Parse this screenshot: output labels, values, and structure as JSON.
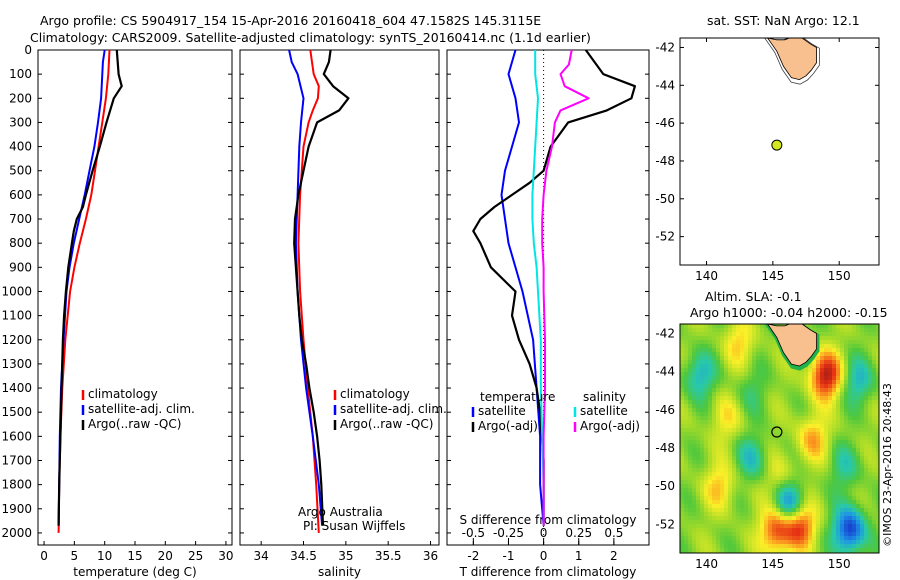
{
  "header": {
    "line1": "Argo profile: CS 5904917_154 15-Apr-2016 20160418_604 47.1582S 145.3115E",
    "line2": "Climatology: CARS2009. Satellite-adjusted climatology: synTS_20160414.nc (1.1d earlier)"
  },
  "side_labels": {
    "sst": "sat. SST: NaN Argo: 12.1",
    "altim": "Altim. SLA: -0.1",
    "argo_h": "Argo h1000: -0.04 h2000: -0.15",
    "stamp": "©IMOS 23-Apr-2016 20:48:43"
  },
  "colors": {
    "climatology": "#ff0000",
    "satellite": "#0000ff",
    "argo": "#000000",
    "sat_salinity": "#00e5e5",
    "argo_salinity": "#ff00ff",
    "land": "#f9c08f",
    "float_marker": "#d4e820"
  },
  "chart_data": [
    {
      "type": "line",
      "xlabel": "temperature (deg C)",
      "ylabel": "",
      "xlim": [
        -1,
        31
      ],
      "ylim": [
        2050,
        0
      ],
      "xticks": [
        "0",
        "5",
        "10",
        "15",
        "20",
        "25",
        "30"
      ],
      "yticks": [
        "0",
        "100",
        "200",
        "300",
        "400",
        "500",
        "600",
        "700",
        "800",
        "900",
        "1000",
        "1100",
        "1200",
        "1300",
        "1400",
        "1500",
        "1600",
        "1700",
        "1800",
        "1900",
        "2000"
      ],
      "legend": [
        "climatology",
        "satellite-adj. clim.",
        "Argo(..raw -QC)"
      ],
      "series": [
        {
          "name": "climatology",
          "color": "red",
          "depth": [
            0,
            100,
            200,
            300,
            400,
            500,
            600,
            700,
            800,
            900,
            1000,
            1200,
            1400,
            1600,
            1800,
            2000
          ],
          "values": [
            10.8,
            10.6,
            10.2,
            9.6,
            9.0,
            8.4,
            7.8,
            6.9,
            5.9,
            5.0,
            4.3,
            3.5,
            3.0,
            2.7,
            2.5,
            2.4
          ]
        },
        {
          "name": "satellite-adj. clim.",
          "color": "blue",
          "depth": [
            0,
            50,
            100,
            200,
            300,
            400,
            500,
            600,
            700,
            800,
            900,
            1000,
            1200,
            1400,
            1600,
            1800,
            1970
          ],
          "values": [
            10.0,
            9.7,
            9.6,
            9.4,
            8.9,
            8.3,
            7.5,
            6.7,
            5.8,
            4.9,
            4.2,
            3.7,
            3.2,
            2.8,
            2.6,
            2.5,
            2.4
          ]
        },
        {
          "name": "Argo(..raw -QC)",
          "color": "black",
          "depth": [
            0,
            100,
            150,
            200,
            300,
            400,
            500,
            600,
            650,
            700,
            750,
            800,
            900,
            1000,
            1100,
            1200,
            1400,
            1600,
            1800,
            1970
          ],
          "values": [
            12.0,
            12.3,
            12.8,
            11.5,
            10.3,
            9.2,
            8.0,
            6.9,
            6.4,
            5.4,
            4.9,
            4.6,
            4.0,
            3.6,
            3.3,
            3.1,
            2.9,
            2.7,
            2.5,
            2.4
          ]
        }
      ]
    },
    {
      "type": "line",
      "xlabel": "salinity",
      "ylabel": "",
      "xlim": [
        33.75,
        36.1
      ],
      "ylim": [
        2050,
        0
      ],
      "xticks": [
        "34",
        "34.5",
        "35",
        "35.5",
        "36"
      ],
      "legend": [
        "climatology",
        "satellite-adj. clim.",
        "Argo(..raw -QC)"
      ],
      "annotations": [
        "Argo Australia",
        "PI: Susan Wijffels"
      ],
      "series": [
        {
          "name": "climatology",
          "color": "red",
          "depth": [
            0,
            100,
            150,
            200,
            250,
            300,
            400,
            600,
            800,
            1000,
            1200,
            1400,
            1600,
            1800,
            2000
          ],
          "values": [
            34.58,
            34.62,
            34.68,
            34.67,
            34.61,
            34.56,
            34.5,
            34.46,
            34.44,
            34.46,
            34.5,
            34.55,
            34.61,
            34.65,
            34.68
          ]
        },
        {
          "name": "satellite-adj. clim.",
          "color": "blue",
          "depth": [
            0,
            50,
            100,
            200,
            300,
            400,
            600,
            800,
            1000,
            1200,
            1400,
            1600,
            1800,
            1970
          ],
          "values": [
            34.33,
            34.36,
            34.43,
            34.5,
            34.47,
            34.45,
            34.43,
            34.41,
            34.43,
            34.47,
            34.53,
            34.61,
            34.68,
            34.72
          ]
        },
        {
          "name": "Argo(..raw -QC)",
          "color": "black",
          "depth": [
            0,
            50,
            100,
            150,
            200,
            250,
            300,
            400,
            500,
            600,
            700,
            800,
            900,
            1000,
            1100,
            1200,
            1300,
            1400,
            1500,
            1600,
            1700,
            1800,
            1970
          ],
          "values": [
            34.82,
            34.8,
            34.74,
            34.85,
            35.03,
            34.92,
            34.66,
            34.56,
            34.5,
            34.44,
            34.4,
            34.39,
            34.41,
            34.43,
            34.45,
            34.48,
            34.53,
            34.57,
            34.62,
            34.66,
            34.69,
            34.71,
            34.73
          ]
        }
      ]
    },
    {
      "type": "line",
      "xlabel": "T difference from climatology",
      "xlabel2": "S difference from climatology",
      "xlim": [
        -2.75,
        3.0
      ],
      "xlim_top": [
        -0.6875,
        0.75
      ],
      "ylim": [
        2050,
        0
      ],
      "xticks": [
        "-2",
        "-1",
        "0",
        "1",
        "2"
      ],
      "xticks_top": [
        "-0.5",
        "-0.25",
        "0",
        "0.25",
        "0.5"
      ],
      "legend_titles": [
        "temperature",
        "salinity"
      ],
      "legend": [
        "satellite",
        "Argo(-adj)",
        "satellite",
        "Argo(-adj)"
      ],
      "series": [
        {
          "name": "satellite",
          "group": "temperature",
          "color": "blue",
          "depth": [
            0,
            100,
            200,
            300,
            400,
            500,
            600,
            700,
            800,
            1000,
            1200,
            1400,
            1600,
            1800,
            1970
          ],
          "values": [
            -0.8,
            -1.0,
            -0.8,
            -0.7,
            -0.9,
            -1.1,
            -1.2,
            -1.1,
            -1.0,
            -0.6,
            -0.3,
            -0.2,
            -0.1,
            -0.1,
            0.0
          ]
        },
        {
          "name": "Argo(-adj)",
          "group": "temperature",
          "color": "black",
          "depth": [
            0,
            100,
            150,
            200,
            250,
            300,
            400,
            500,
            550,
            600,
            650,
            700,
            750,
            800,
            900,
            1000,
            1100,
            1200,
            1300,
            1400,
            1500,
            1600,
            1700,
            1800,
            1970
          ],
          "values": [
            1.2,
            1.7,
            2.6,
            2.5,
            1.8,
            0.7,
            0.2,
            0.0,
            -0.4,
            -0.9,
            -1.4,
            -1.8,
            -2.0,
            -1.8,
            -1.5,
            -0.8,
            -0.9,
            -0.7,
            -0.4,
            -0.2,
            -0.1,
            -0.05,
            0.0,
            0.0,
            0.0
          ]
        },
        {
          "name": "satellite",
          "group": "salinity",
          "color": "cyan",
          "depth": [
            0,
            100,
            200,
            300,
            400,
            500,
            600,
            700,
            800,
            900,
            1000,
            1200,
            1400,
            1600,
            1800,
            1970
          ],
          "values": [
            -0.06,
            -0.06,
            -0.04,
            -0.05,
            -0.06,
            -0.07,
            -0.08,
            -0.08,
            -0.07,
            -0.05,
            -0.04,
            -0.02,
            -0.02,
            -0.01,
            0.0,
            0.0
          ]
        },
        {
          "name": "Argo(-adj)",
          "group": "salinity",
          "color": "magenta",
          "depth": [
            0,
            60,
            100,
            150,
            200,
            250,
            300,
            400,
            500,
            600,
            700,
            800,
            900,
            1000,
            1200,
            1400,
            1600,
            1800,
            1970
          ],
          "values": [
            0.2,
            0.18,
            0.12,
            0.15,
            0.32,
            0.12,
            0.08,
            0.06,
            0.02,
            0.0,
            -0.01,
            -0.01,
            0.0,
            0.0,
            0.01,
            0.01,
            0.0,
            0.0,
            0.0
          ]
        }
      ]
    },
    {
      "type": "scatter",
      "title": "sat. SST: NaN Argo: 12.1",
      "xlim": [
        138,
        153
      ],
      "ylim": [
        -53.5,
        -41.5
      ],
      "xticks": [
        "140",
        "145",
        "150"
      ],
      "yticks": [
        "-42",
        "-44",
        "-46",
        "-48",
        "-50",
        "-52"
      ],
      "points": [
        {
          "x": 145.3,
          "y": -47.16
        }
      ]
    },
    {
      "type": "heatmap",
      "title": "Altim. SLA: -0.1",
      "subtitle": "Argo h1000: -0.04 h2000: -0.15",
      "xlim": [
        138,
        153
      ],
      "ylim": [
        -53.5,
        -41.5
      ],
      "xticks": [
        "140",
        "145",
        "150"
      ],
      "yticks": [
        "-42",
        "-44",
        "-46",
        "-48",
        "-50",
        "-52"
      ],
      "points": [
        {
          "x": 145.3,
          "y": -47.16
        }
      ],
      "blobs": [
        {
          "x": 149.0,
          "y": -44.2,
          "v": 2.5
        },
        {
          "x": 148.0,
          "y": -47.5,
          "v": 1.2
        },
        {
          "x": 141.0,
          "y": -50.0,
          "v": 1.0
        },
        {
          "x": 147.0,
          "y": -52.0,
          "v": 2.2
        },
        {
          "x": 145.3,
          "y": -52.3,
          "v": 2.0
        },
        {
          "x": 142.5,
          "y": -42.5,
          "v": 0.9
        },
        {
          "x": 139.5,
          "y": -44.2,
          "v": -1.2
        },
        {
          "x": 143.5,
          "y": -48.5,
          "v": -1.0
        },
        {
          "x": 146.3,
          "y": -51.0,
          "v": -2.0
        },
        {
          "x": 150.8,
          "y": -52.3,
          "v": -2.5
        },
        {
          "x": 151.5,
          "y": -44.5,
          "v": -1.1
        },
        {
          "x": 150.5,
          "y": -49.0,
          "v": -0.8
        },
        {
          "x": 141.5,
          "y": -46.5,
          "v": 0.7
        },
        {
          "x": 143.5,
          "y": -45.0,
          "v": -0.5
        },
        {
          "x": 145.5,
          "y": -49.5,
          "v": 0.6
        }
      ]
    }
  ]
}
